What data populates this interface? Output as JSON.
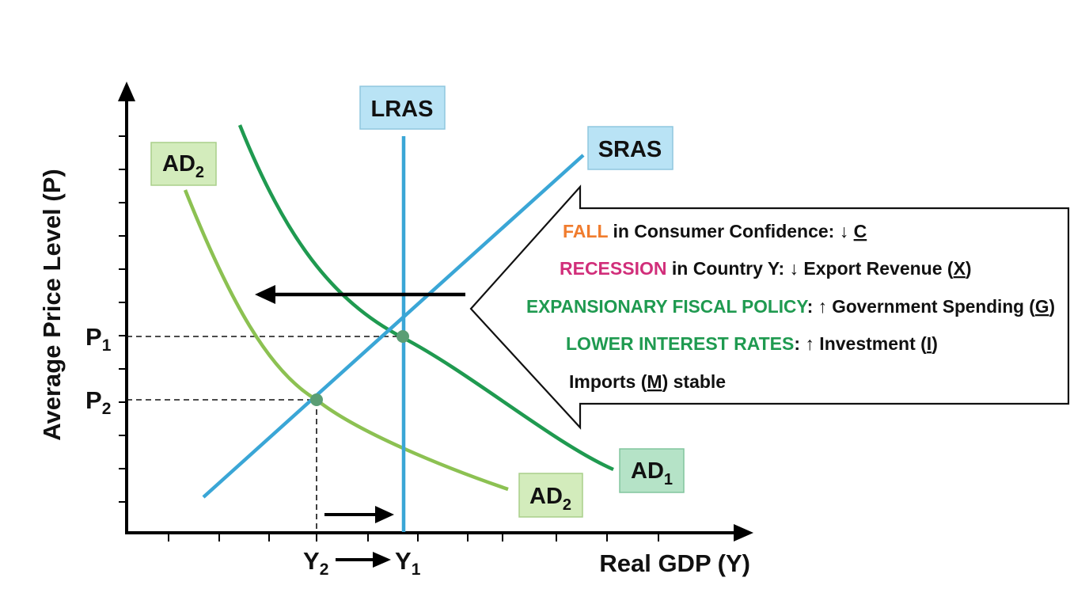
{
  "axes": {
    "y_title": "Average Price Level (P)",
    "x_title": "Real GDP (Y)"
  },
  "levels": {
    "p1": {
      "main": "P",
      "sub": "1"
    },
    "p2": {
      "main": "P",
      "sub": "2"
    },
    "y1": {
      "main": "Y",
      "sub": "1"
    },
    "y2": {
      "main": "Y",
      "sub": "2"
    }
  },
  "curves": {
    "lras": "LRAS",
    "sras": "SRAS",
    "ad1": {
      "main": "AD",
      "sub": "1"
    },
    "ad2_top": {
      "main": "AD",
      "sub": "2"
    },
    "ad2_bottom": {
      "main": "AD",
      "sub": "2"
    }
  },
  "callout": {
    "line1": {
      "highlight": "FALL",
      "text": " in Consumer Confidence: ",
      "arrow": "↓",
      "var": "C"
    },
    "line2": {
      "highlight": "RECESSION",
      "text": " in Country Y:  ",
      "arrow": "↓",
      "text2": " Export Revenue (",
      "var": "X",
      "close": ")"
    },
    "line3": {
      "highlight": "EXPANSIONARY FISCAL POLICY",
      "text": ": ",
      "arrow": "↑",
      "text2": " Government Spending (",
      "var": "G",
      "close": ")"
    },
    "line4": {
      "highlight": "LOWER INTEREST RATES",
      "text": ": ",
      "arrow": "↑",
      "text2": " Investment (",
      "var": "I",
      "close": ")"
    },
    "line5": {
      "text": "Imports (",
      "var": "M",
      "close": ") stable"
    }
  },
  "colors": {
    "lras": "#3aa6d6",
    "sras": "#3aa6d6",
    "ad1": "#1f9a50",
    "ad2": "#8cc152",
    "blue_box": "#b9e3f5",
    "ad1_box": "#b5e3c7",
    "ad2_box": "#d3ecbc",
    "fall": "#f07c2e",
    "recession": "#d12e7a",
    "fiscal": "#1f9a50",
    "interest": "#1f9a50",
    "point": "#5a9e74"
  },
  "icons": {
    "shift_left": "arrow-left-icon",
    "shift_right": "arrow-right-icon",
    "y_shift": "arrow-right-icon"
  }
}
